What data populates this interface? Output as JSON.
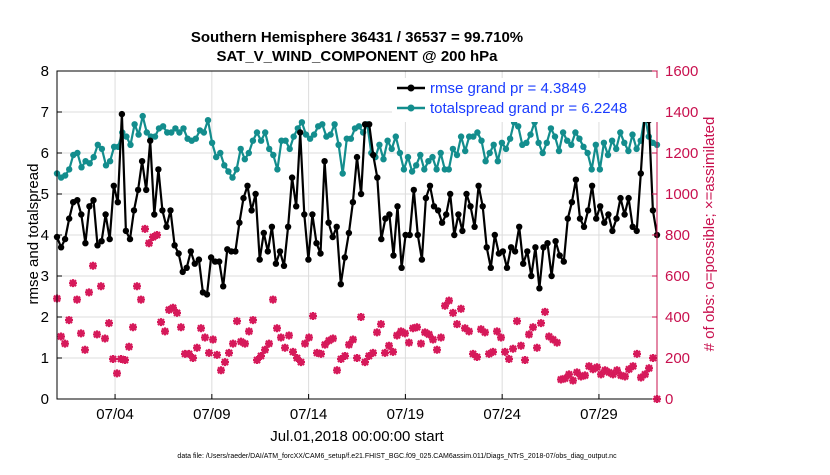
{
  "chart_data": {
    "type": "line",
    "title": "Southern Hemisphere 36431 / 36537 = 99.710%",
    "subtitle": "SAT_V_WIND_COMPONENT @ 200 hPa",
    "xlabel": "Jul.01,2018 00:00:00 start",
    "ylabel": "rmse and totalspread",
    "ylabel_right": "# of obs: o=possible; ×=assimilated",
    "x_ticks": [
      "07/04",
      "07/09",
      "07/14",
      "07/19",
      "07/24",
      "07/29"
    ],
    "x_tick_days": [
      4,
      9,
      14,
      19,
      24,
      29
    ],
    "xlim": [
      1,
      32
    ],
    "ylim": [
      0,
      8
    ],
    "y_ticks": [
      "0",
      "1",
      "2",
      "3",
      "4",
      "5",
      "6",
      "7",
      "8"
    ],
    "ylim_right": [
      0,
      1600
    ],
    "y_ticks_right": [
      "0",
      "200",
      "400",
      "600",
      "800",
      "1000",
      "1200",
      "1400",
      "1600"
    ],
    "grid": true,
    "legend_position": "top-right",
    "colors": {
      "rmse": "#000000",
      "totalspread": "#138d8d",
      "obs": "#d6195a",
      "right_axis": "#c8104e",
      "legend_text": "#1a3cff"
    },
    "series": [
      {
        "name": "rmse grand pr = 4.3849",
        "axis": "left",
        "values": [
          3.95,
          3.7,
          3.9,
          4.4,
          4.8,
          4.85,
          4.5,
          3.8,
          4.7,
          4.85,
          3.75,
          3.85,
          4.5,
          3.9,
          5.2,
          4.8,
          6.95,
          4.1,
          3.9,
          4.6,
          5.1,
          5.8,
          5.1,
          6.3,
          4.5,
          5.6,
          4.6,
          4.2,
          4.6,
          3.75,
          3.55,
          3.1,
          3.2,
          3.6,
          3.3,
          3.4,
          2.6,
          2.55,
          3.45,
          3.35,
          3.35,
          2.75,
          3.65,
          3.6,
          3.6,
          4.3,
          4.9,
          5.2,
          4.6,
          5.0,
          3.4,
          4.05,
          3.6,
          4.2,
          3.3,
          3.6,
          3.25,
          4.2,
          5.4,
          4.7,
          6.5,
          4.5,
          3.4,
          4.5,
          3.8,
          3.55,
          5.8,
          4.3,
          3.95,
          4.2,
          2.8,
          3.45,
          4.05,
          4.8,
          5.9,
          5.0,
          6.7,
          6.7,
          5.95,
          5.4,
          3.9,
          4.4,
          4.5,
          3.5,
          4.7,
          3.2,
          4.0,
          4.0,
          5.1,
          4.0,
          3.4,
          4.9,
          5.2,
          4.7,
          4.6,
          4.3,
          4.5,
          5.0,
          4.0,
          4.5,
          4.1,
          5.0,
          4.7,
          4.2,
          5.2,
          4.7,
          3.7,
          3.2,
          4.0,
          3.55,
          3.6,
          3.2,
          3.7,
          3.6,
          4.2,
          3.3,
          3.6,
          3.0,
          3.7,
          2.7,
          3.7,
          3.8,
          3.0,
          3.85,
          3.5,
          3.35,
          4.4,
          4.8,
          5.35,
          4.4,
          4.2,
          4.6,
          5.2,
          4.4,
          4.7,
          4.3,
          4.5,
          4.1,
          4.4,
          4.9,
          4.5,
          4.9,
          4.2,
          4.1,
          5.5,
          7.0,
          6.8,
          4.6,
          4.0
        ]
      },
      {
        "name": "totalspread grand pr = 6.2248",
        "axis": "left",
        "values": [
          5.5,
          5.4,
          5.45,
          5.6,
          5.95,
          6.0,
          5.65,
          5.8,
          5.75,
          5.9,
          6.2,
          6.1,
          5.7,
          5.8,
          6.15,
          6.15,
          6.5,
          6.4,
          6.2,
          6.7,
          6.45,
          6.9,
          6.5,
          6.4,
          6.4,
          6.6,
          6.65,
          6.5,
          6.5,
          6.6,
          6.5,
          6.6,
          6.35,
          6.3,
          6.35,
          6.55,
          6.5,
          6.8,
          6.25,
          5.9,
          6.0,
          5.7,
          5.55,
          5.4,
          5.6,
          6.1,
          5.85,
          6.0,
          6.3,
          6.5,
          6.3,
          6.5,
          6.1,
          5.95,
          5.6,
          6.3,
          6.3,
          6.1,
          6.4,
          6.6,
          6.75,
          6.45,
          6.35,
          6.45,
          6.65,
          6.7,
          6.4,
          6.45,
          6.7,
          6.2,
          5.5,
          6.35,
          6.35,
          6.6,
          6.65,
          6.5,
          6.7,
          6.0,
          5.9,
          6.2,
          5.85,
          6.3,
          6.1,
          6.4,
          6.0,
          5.6,
          5.9,
          5.55,
          5.7,
          5.95,
          5.6,
          5.8,
          5.9,
          5.6,
          6.0,
          5.6,
          5.6,
          6.1,
          5.95,
          6.4,
          6.05,
          6.4,
          6.4,
          6.5,
          6.3,
          5.8,
          6.0,
          6.2,
          5.8,
          6.25,
          6.1,
          6.35,
          6.75,
          6.65,
          6.2,
          6.25,
          6.45,
          6.75,
          6.25,
          6.0,
          6.25,
          6.6,
          6.4,
          6.05,
          6.5,
          6.3,
          6.2,
          6.5,
          6.35,
          6.15,
          6.0,
          5.6,
          6.2,
          5.6,
          6.25,
          5.95,
          6.3,
          6.1,
          6.5,
          6.25,
          6.05,
          6.45,
          6.1,
          6.3,
          6.9,
          6.4,
          6.25,
          6.2
        ]
      },
      {
        "name": "obs assimilated",
        "axis": "right",
        "type": "scatter",
        "values": [
          490,
          305,
          270,
          385,
          565,
          485,
          320,
          240,
          520,
          650,
          315,
          550,
          295,
          370,
          195,
          125,
          195,
          190,
          255,
          350,
          550,
          485,
          830,
          760,
          790,
          800,
          375,
          330,
          435,
          445,
          420,
          350,
          220,
          220,
          200,
          250,
          345,
          300,
          225,
          290,
          215,
          140,
          180,
          225,
          270,
          380,
          280,
          270,
          330,
          385,
          190,
          210,
          240,
          270,
          485,
          345,
          300,
          250,
          310,
          230,
          200,
          180,
          270,
          300,
          405,
          225,
          220,
          265,
          285,
          295,
          140,
          195,
          210,
          265,
          290,
          200,
          400,
          180,
          210,
          225,
          325,
          365,
          225,
          260,
          230,
          310,
          330,
          320,
          275,
          345,
          350,
          270,
          325,
          315,
          290,
          240,
          300,
          455,
          480,
          420,
          365,
          440,
          345,
          330,
          220,
          205,
          340,
          325,
          220,
          230,
          330,
          300,
          230,
          195,
          245,
          380,
          260,
          190,
          315,
          350,
          250,
          370,
          425,
          305,
          290,
          275,
          95,
          100,
          120,
          90,
          130,
          110,
          115,
          160,
          145,
          155,
          120,
          140,
          130,
          120,
          140,
          115,
          110,
          145,
          160,
          220,
          105,
          120,
          150,
          200,
          0
        ]
      }
    ],
    "footer": "data file: /Users/raeder/DAI/ATM_forcXX/CAM6_setup/f.e21.FHIST_BGC.f09_025.CAM6assim.011/Diags_NTrS_2018-07/obs_diag_output.nc"
  }
}
